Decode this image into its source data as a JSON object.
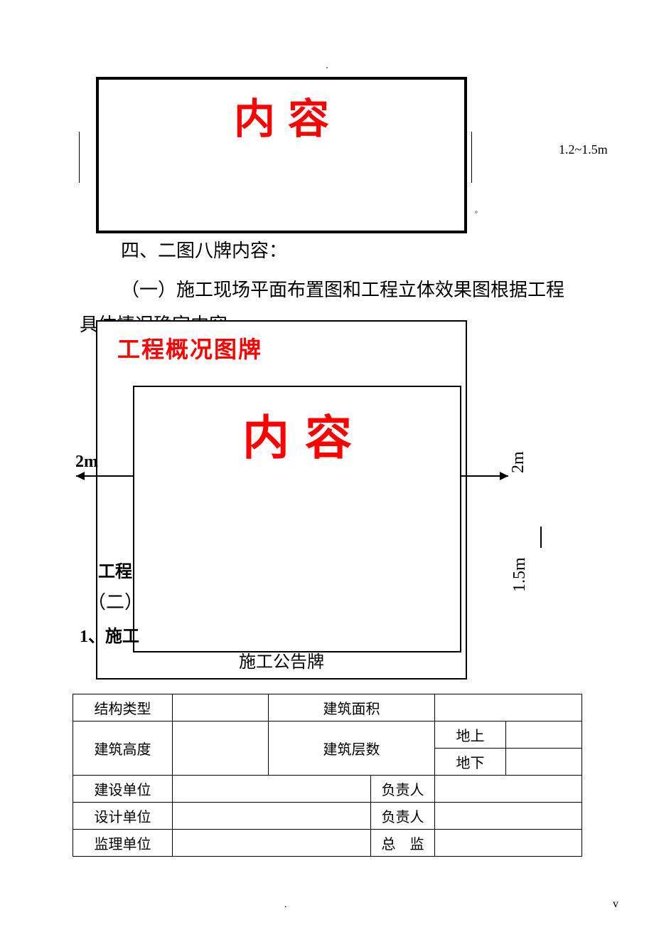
{
  "top_dot": ".",
  "box1": {
    "title": "内容"
  },
  "dim_top": "1.2~1.5m",
  "section4": "四、二图八牌内容：",
  "para1_line1": "（一）施工现场平面布置图和工程立体效果图根据工程",
  "para1_line2": "具体情况确定内容。",
  "box2": {
    "header": "工程概况图牌",
    "inner_title": "内容",
    "footer": "施工公告牌"
  },
  "dims": {
    "left_2m": "2m",
    "right_2m": "2m",
    "right_15m": "1.5m"
  },
  "partial": {
    "gc": "工程",
    "paren": "（二）",
    "one": "1、施工"
  },
  "table": {
    "rows": [
      {
        "a": "结构类型",
        "b": "",
        "c": "建筑面积",
        "d": "",
        "e": ""
      },
      {
        "a": "建筑高度",
        "b": "",
        "c": "建筑层数",
        "d1": "地上",
        "d2": "地下"
      },
      {
        "a": "建设单位",
        "b": "",
        "c": "负责人",
        "d": ""
      },
      {
        "a": "设计单位",
        "b": "",
        "c": "负责人",
        "d": ""
      },
      {
        "a": "监理单位",
        "b": "",
        "c": "总　监",
        "d": ""
      }
    ]
  },
  "bottom_dot": ".",
  "bottom_v": "v"
}
